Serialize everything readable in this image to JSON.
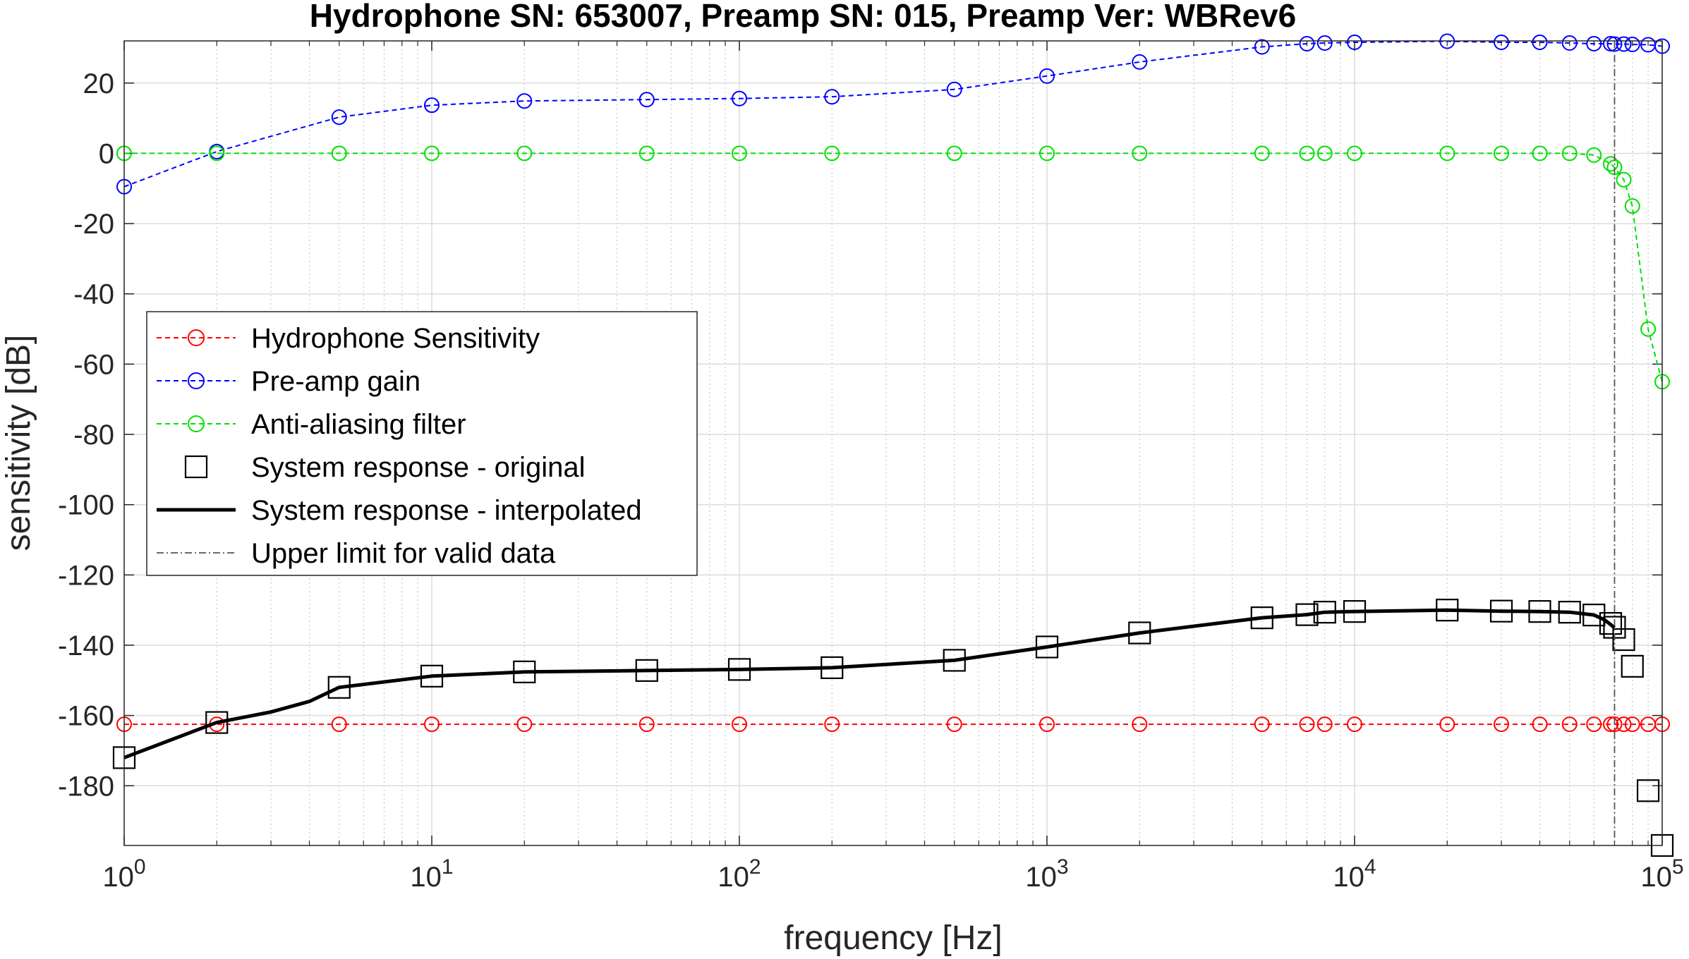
{
  "chart_data": {
    "type": "line",
    "title": "Hydrophone SN: 653007, Preamp SN: 015, Preamp Ver: WBRev6",
    "xlabel": "frequency [Hz]",
    "ylabel": "sensitivity [dB]",
    "x_scale": "log",
    "xlim": [
      1,
      100000
    ],
    "ylim": [
      -197,
      32
    ],
    "grid": true,
    "minor_grid_x": true,
    "x_ticks": [
      1,
      10,
      100,
      1000,
      10000,
      100000
    ],
    "x_tick_labels": [
      {
        "base": "10",
        "exp": "0"
      },
      {
        "base": "10",
        "exp": "1"
      },
      {
        "base": "10",
        "exp": "2"
      },
      {
        "base": "10",
        "exp": "3"
      },
      {
        "base": "10",
        "exp": "4"
      },
      {
        "base": "10",
        "exp": "5"
      }
    ],
    "y_ticks": [
      20,
      0,
      -20,
      -40,
      -60,
      -80,
      -100,
      -120,
      -140,
      -160,
      -180
    ],
    "y_tick_labels": [
      "20",
      "0",
      "-20",
      "-40",
      "-60",
      "-80",
      "-100",
      "-120",
      "-140",
      "-160",
      "-180"
    ],
    "legend_position": "middle-left",
    "series": [
      {
        "name": "Hydrophone Sensitivity",
        "style": "dashed-circle",
        "color": "#ff0000",
        "x": [
          1,
          2,
          5,
          10,
          20,
          50,
          100,
          200,
          500,
          1000,
          2000,
          5000,
          7000,
          8000,
          10000,
          20000,
          30000,
          40000,
          50000,
          60000,
          68000,
          70000,
          75000,
          80000,
          90000,
          100000
        ],
        "y": [
          -162.5,
          -162.5,
          -162.5,
          -162.5,
          -162.5,
          -162.5,
          -162.5,
          -162.5,
          -162.5,
          -162.5,
          -162.5,
          -162.5,
          -162.5,
          -162.5,
          -162.5,
          -162.5,
          -162.5,
          -162.5,
          -162.5,
          -162.5,
          -162.5,
          -162.5,
          -162.5,
          -162.5,
          -162.5,
          -162.5
        ]
      },
      {
        "name": "Pre-amp gain",
        "style": "dashed-circle",
        "color": "#0000ff",
        "x": [
          1,
          2,
          5,
          10,
          20,
          50,
          100,
          200,
          500,
          1000,
          2000,
          5000,
          7000,
          8000,
          10000,
          20000,
          30000,
          40000,
          50000,
          60000,
          68000,
          70000,
          75000,
          80000,
          90000,
          100000
        ],
        "y": [
          -9.5,
          0.5,
          10.3,
          13.7,
          14.9,
          15.3,
          15.6,
          16.1,
          18.2,
          22,
          26,
          30.3,
          31.2,
          31.4,
          31.6,
          31.9,
          31.6,
          31.6,
          31.4,
          31.2,
          31.2,
          31.1,
          31.1,
          31,
          30.9,
          30.5
        ]
      },
      {
        "name": "Anti-aliasing filter",
        "style": "dashed-circle",
        "color": "#00e000",
        "x": [
          1,
          2,
          5,
          10,
          20,
          50,
          100,
          200,
          500,
          1000,
          2000,
          5000,
          7000,
          8000,
          10000,
          20000,
          30000,
          40000,
          50000,
          60000,
          68000,
          70000,
          75000,
          80000,
          90000,
          100000
        ],
        "y": [
          0,
          0,
          0,
          0,
          0,
          0,
          0,
          0,
          0,
          0,
          0,
          0,
          0,
          0,
          0,
          0,
          0,
          0,
          0,
          -0.5,
          -3,
          -4,
          -7.5,
          -15,
          -50,
          -65
        ]
      },
      {
        "name": "System response - original",
        "style": "square-marker",
        "color": "#000000",
        "x": [
          1,
          2,
          5,
          10,
          20,
          50,
          100,
          200,
          500,
          1000,
          2000,
          5000,
          7000,
          8000,
          10000,
          20000,
          30000,
          40000,
          50000,
          60000,
          68000,
          70000,
          75000,
          80000,
          90000,
          100000
        ],
        "y": [
          -172,
          -162,
          -152,
          -148.8,
          -147.6,
          -147.2,
          -146.9,
          -146.4,
          -144.3,
          -140.5,
          -136.5,
          -132.2,
          -131.3,
          -130.6,
          -130.4,
          -130,
          -130.3,
          -130.4,
          -130.6,
          -131.4,
          -133.8,
          -134.9,
          -138.4,
          -146,
          -181.4,
          -197
        ]
      },
      {
        "name": "System response - interpolated",
        "style": "solid-thick",
        "color": "#000000",
        "x": [
          1,
          2,
          3,
          4,
          5,
          10,
          20,
          50,
          100,
          200,
          500,
          1000,
          2000,
          5000,
          7000,
          8000,
          10000,
          20000,
          30000,
          40000,
          50000,
          60000,
          65000,
          70000
        ],
        "y": [
          -172,
          -162,
          -159,
          -156,
          -152,
          -148.8,
          -147.6,
          -147.2,
          -146.9,
          -146.4,
          -144.3,
          -140.5,
          -136.5,
          -132.2,
          -131.3,
          -130.6,
          -130.4,
          -130,
          -130.3,
          -130.4,
          -130.6,
          -131.4,
          -132.8,
          -135
        ]
      },
      {
        "name": "Upper limit for valid data",
        "style": "dash-dot-vertical",
        "color": "#555555",
        "x": [
          70000,
          70000
        ],
        "y": [
          -197,
          32
        ]
      }
    ]
  }
}
